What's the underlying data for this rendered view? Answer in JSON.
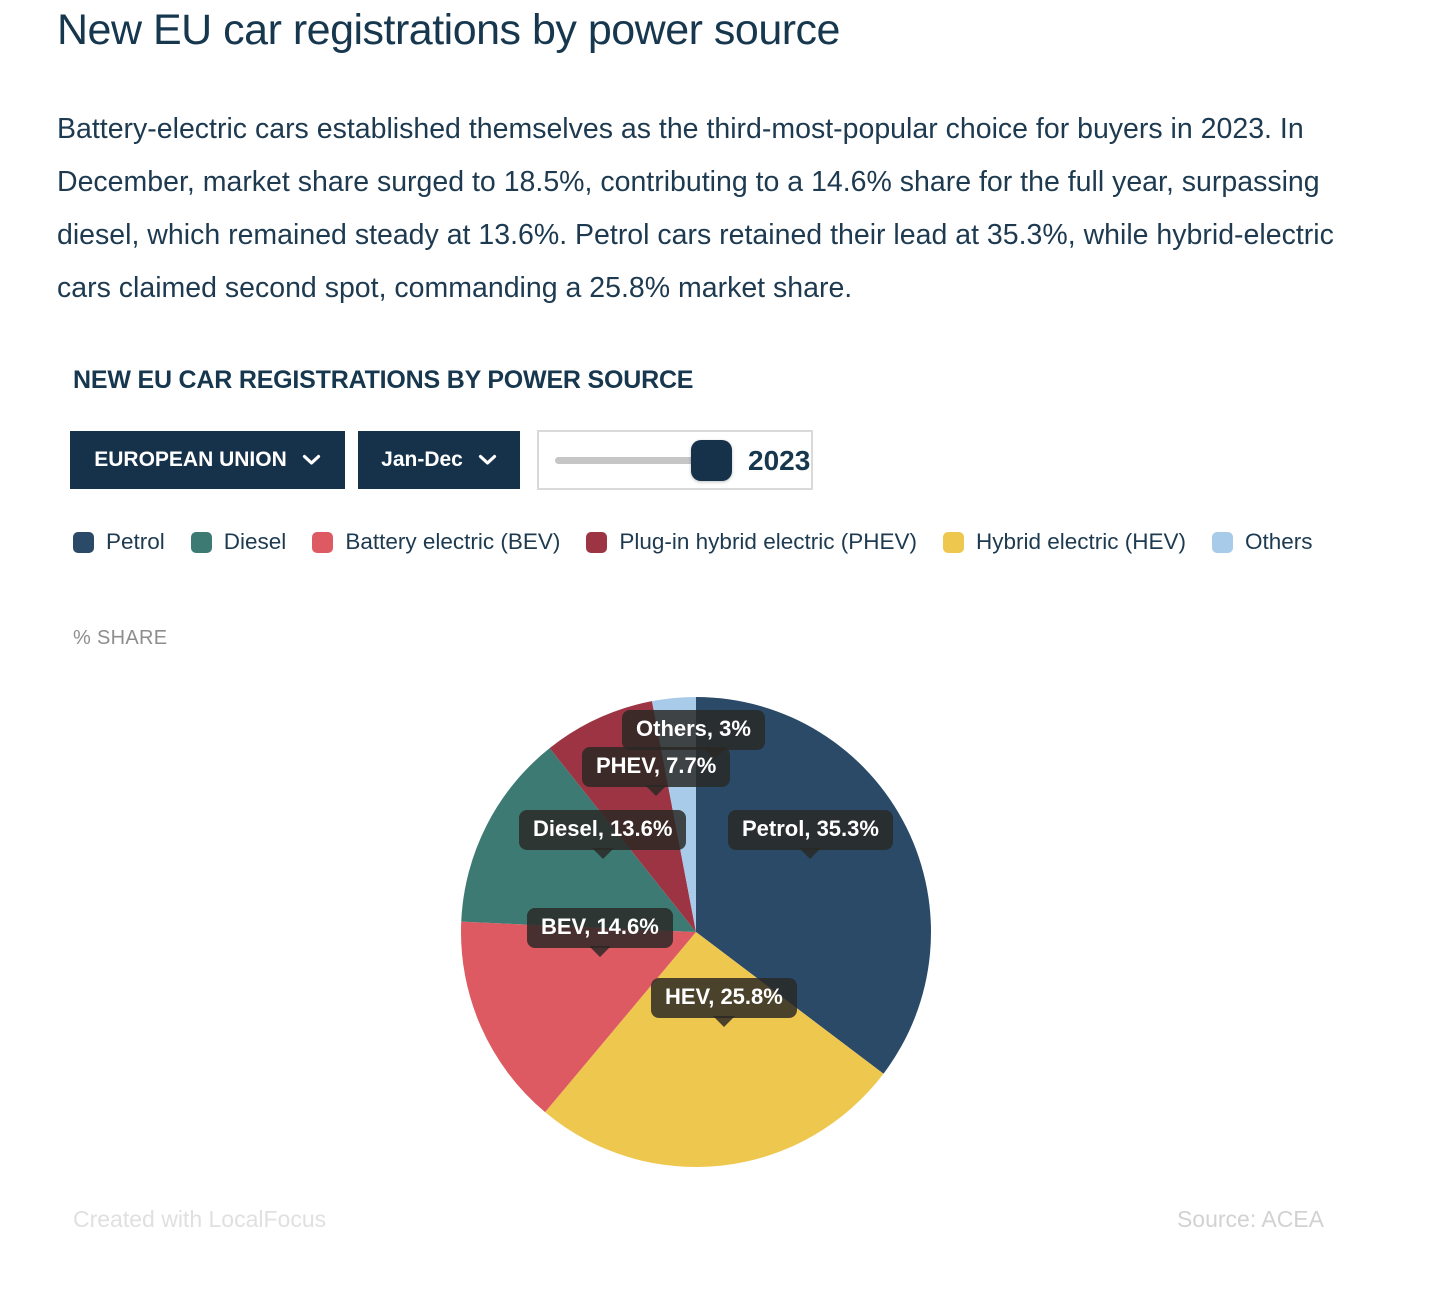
{
  "header": {
    "title": "New EU car registrations by power source",
    "intro": "Battery-electric cars established themselves as the third-most-popular choice for buyers in 2023. In December, market share surged to 18.5%, contributing to a 14.6% share for the full year, surpassing diesel, which remained steady at 13.6%. Petrol cars retained their lead at 35.3%, while hybrid-electric cars claimed second spot, commanding a 25.8% market share."
  },
  "widget": {
    "heading": "NEW EU CAR REGISTRATIONS BY POWER SOURCE",
    "region_dropdown": {
      "value": "EUROPEAN UNION"
    },
    "period_dropdown": {
      "value": "Jan-Dec"
    },
    "year_slider": {
      "value": "2023"
    },
    "axis_note": "% SHARE",
    "footer_left": "Created with LocalFocus",
    "footer_right": "Source: ACEA"
  },
  "chart_data": {
    "type": "pie",
    "title": "NEW EU CAR REGISTRATIONS BY POWER SOURCE",
    "unit": "% share",
    "legend_position": "top",
    "start_angle_deg": 0,
    "draw_order_clockwise": [
      "petrol",
      "hev",
      "bev",
      "diesel",
      "phev",
      "others"
    ],
    "slices": [
      {
        "key": "petrol",
        "legend": "Petrol",
        "tooltip": "Petrol, 35.3%",
        "value": 35.3,
        "color": "#2a4a68"
      },
      {
        "key": "diesel",
        "legend": "Diesel",
        "tooltip": "Diesel, 13.6%",
        "value": 13.6,
        "color": "#3d7a74"
      },
      {
        "key": "bev",
        "legend": "Battery electric (BEV)",
        "tooltip": "BEV, 14.6%",
        "value": 14.6,
        "color": "#de5a62"
      },
      {
        "key": "phev",
        "legend": "Plug-in hybrid electric (PHEV)",
        "tooltip": "PHEV, 7.7%",
        "value": 7.7,
        "color": "#9c3443"
      },
      {
        "key": "hev",
        "legend": "Hybrid electric (HEV)",
        "tooltip": "HEV, 25.8%",
        "value": 25.8,
        "color": "#eec74f"
      },
      {
        "key": "others",
        "legend": "Others",
        "tooltip": "Others, 3%",
        "value": 3,
        "color": "#a9cbea"
      }
    ]
  }
}
